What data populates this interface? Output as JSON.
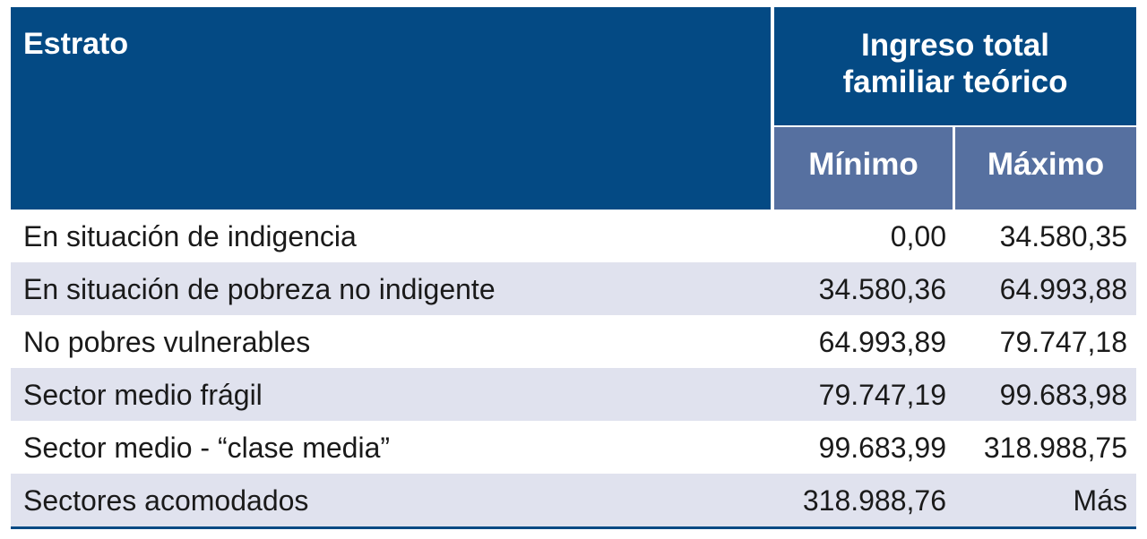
{
  "header": {
    "estrato": "Estrato",
    "group": "Ingreso total familiar teórico",
    "min": "Mínimo",
    "max": "Máximo"
  },
  "rows": [
    {
      "label": "En situación de indigencia",
      "min": "0,00",
      "max": "34.580,35"
    },
    {
      "label": "En situación de pobreza no indigente",
      "min": "34.580,36",
      "max": "64.993,88"
    },
    {
      "label": "No pobres vulnerables",
      "min": "64.993,89",
      "max": "79.747,18"
    },
    {
      "label": "Sector medio frágil",
      "min": "79.747,19",
      "max": "99.683,98"
    },
    {
      "label": "Sector medio - “clase media”",
      "min": "99.683,99",
      "max": "318.988,75"
    },
    {
      "label": "Sectores acomodados",
      "min": "318.988,76",
      "max": "Más"
    }
  ],
  "colors": {
    "header": "#044a84",
    "subheader": "#5670a0",
    "alt_row": "#e0e2ee"
  }
}
